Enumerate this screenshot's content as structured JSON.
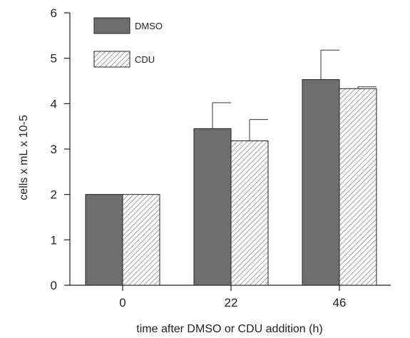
{
  "chart_data": {
    "type": "bar",
    "title": "",
    "xlabel": "time after DMSO or CDU addition (h)",
    "ylabel": "cells x mL x 10-5",
    "categories": [
      "0",
      "22",
      "46"
    ],
    "ylim": [
      0,
      6
    ],
    "yticks": [
      "0",
      "1",
      "2",
      "3",
      "4",
      "5",
      "6"
    ],
    "legend_position": "top-left",
    "grid": false,
    "series": [
      {
        "name": "DMSO",
        "values": [
          2.0,
          3.45,
          4.53
        ],
        "errors": [
          0,
          0.57,
          0.65
        ],
        "color": "#6e6e6e",
        "pattern": "solid"
      },
      {
        "name": "CDU",
        "values": [
          2.0,
          3.18,
          4.33
        ],
        "errors": [
          0,
          0.47,
          0.04
        ],
        "color": "#ffffff",
        "pattern": "hatch"
      }
    ]
  }
}
